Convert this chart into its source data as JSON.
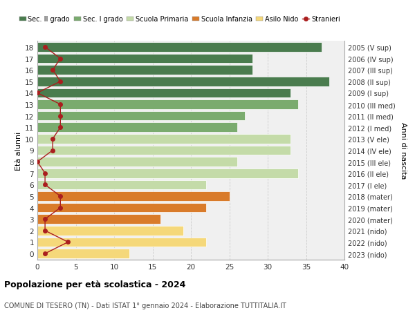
{
  "ages": [
    18,
    17,
    16,
    15,
    14,
    13,
    12,
    11,
    10,
    9,
    8,
    7,
    6,
    5,
    4,
    3,
    2,
    1,
    0
  ],
  "years": [
    "2005 (V sup)",
    "2006 (IV sup)",
    "2007 (III sup)",
    "2008 (II sup)",
    "2009 (I sup)",
    "2010 (III med)",
    "2011 (II med)",
    "2012 (I med)",
    "2013 (V ele)",
    "2014 (IV ele)",
    "2015 (III ele)",
    "2016 (II ele)",
    "2017 (I ele)",
    "2018 (mater)",
    "2019 (mater)",
    "2020 (mater)",
    "2021 (nido)",
    "2022 (nido)",
    "2023 (nido)"
  ],
  "bar_values": [
    37,
    28,
    28,
    38,
    33,
    34,
    27,
    26,
    33,
    33,
    26,
    34,
    22,
    25,
    22,
    16,
    19,
    22,
    12
  ],
  "stranieri_values": [
    1,
    3,
    2,
    3,
    0,
    3,
    3,
    3,
    2,
    2,
    0,
    1,
    1,
    3,
    3,
    1,
    1,
    4,
    1
  ],
  "bar_colors": [
    "#4a7c4e",
    "#4a7c4e",
    "#4a7c4e",
    "#4a7c4e",
    "#4a7c4e",
    "#7aab6e",
    "#7aab6e",
    "#7aab6e",
    "#c4dba8",
    "#c4dba8",
    "#c4dba8",
    "#c4dba8",
    "#c4dba8",
    "#d97b2a",
    "#d97b2a",
    "#d97b2a",
    "#f5d87a",
    "#f5d87a",
    "#f5d87a"
  ],
  "legend_labels": [
    "Sec. II grado",
    "Sec. I grado",
    "Scuola Primaria",
    "Scuola Infanzia",
    "Asilo Nido",
    "Stranieri"
  ],
  "legend_colors": [
    "#4a7c4e",
    "#7aab6e",
    "#c4dba8",
    "#d97b2a",
    "#f5d87a",
    "#aa1e1e"
  ],
  "stranieri_color": "#aa1e1e",
  "title": "Popolazione per età scolastica - 2024",
  "subtitle": "COMUNE DI TESERO (TN) - Dati ISTAT 1° gennaio 2024 - Elaborazione TUTTITALIA.IT",
  "ylabel_left": "Età alunni",
  "ylabel_right": "Anni di nascita",
  "xlim": [
    0,
    40
  ],
  "xticks": [
    0,
    5,
    10,
    15,
    20,
    25,
    30,
    35,
    40
  ],
  "bar_height": 0.82,
  "plot_bg": "#f0f0f0"
}
